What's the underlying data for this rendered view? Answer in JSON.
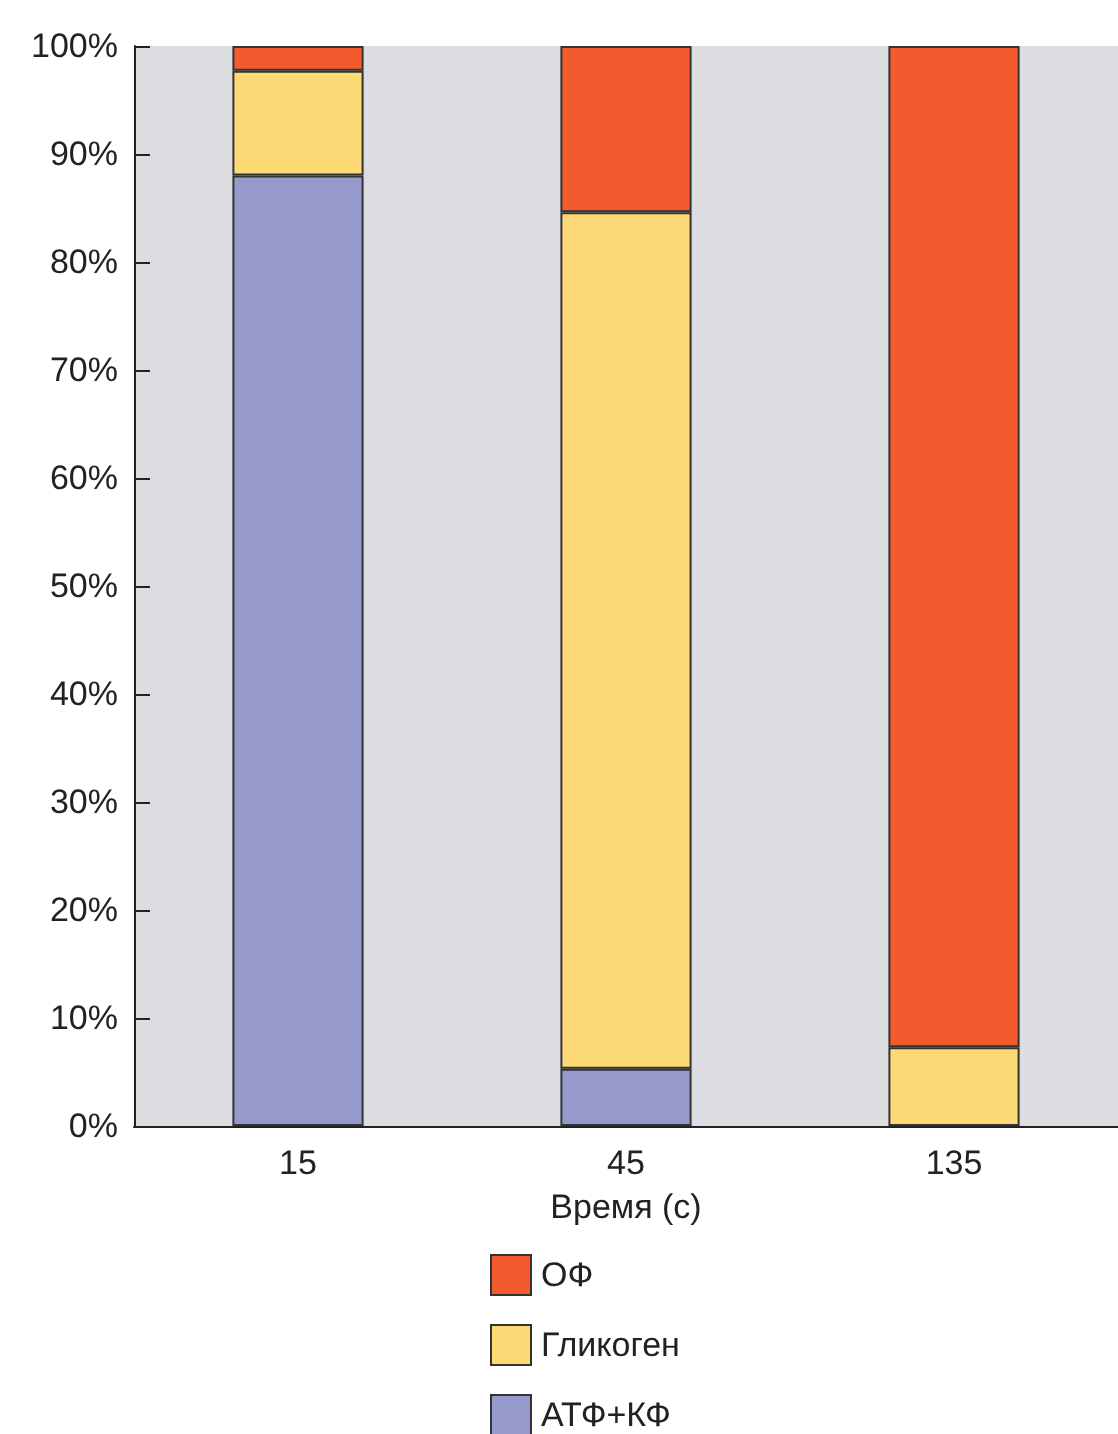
{
  "chart_data": {
    "type": "bar",
    "stacked": true,
    "xlabel": "Время (с)",
    "categories": [
      "15",
      "45",
      "135"
    ],
    "series": [
      {
        "name": "АТФ+КФ",
        "color": "#9599cb",
        "values": [
          88,
          5.3,
          0
        ]
      },
      {
        "name": "Гликоген",
        "color": "#fdd975",
        "values": [
          9.7,
          79.3,
          7.3
        ]
      },
      {
        "name": "ОФ",
        "color": "#f15b2e",
        "values": [
          2.3,
          15.4,
          92.7
        ]
      }
    ],
    "ylim": [
      0,
      100
    ],
    "yticks": [
      {
        "value": 0,
        "label": "0%"
      },
      {
        "value": 10,
        "label": "10%"
      },
      {
        "value": 20,
        "label": "20%"
      },
      {
        "value": 30,
        "label": "30%"
      },
      {
        "value": 40,
        "label": "40%"
      },
      {
        "value": 50,
        "label": "50%"
      },
      {
        "value": 60,
        "label": "60%"
      },
      {
        "value": 70,
        "label": "70%"
      },
      {
        "value": 80,
        "label": "80%"
      },
      {
        "value": 90,
        "label": "90%"
      },
      {
        "value": 100,
        "label": "100%"
      }
    ],
    "legend": "bottom"
  }
}
